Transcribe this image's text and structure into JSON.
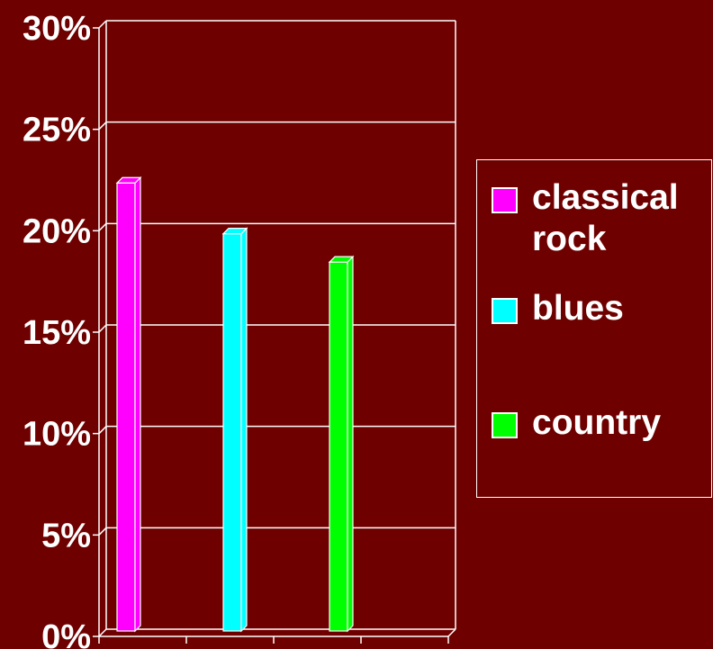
{
  "chart_data": {
    "type": "bar",
    "categories": [
      "classical rock",
      "blues",
      "country"
    ],
    "series": [
      {
        "values": [
          22,
          19.5,
          18.1
        ]
      }
    ],
    "colors": [
      "#ff00ff",
      "#00ffff",
      "#00ff00"
    ],
    "ylim": [
      0,
      30
    ],
    "yticks": [
      "0%",
      "5%",
      "10%",
      "15%",
      "20%",
      "25%",
      "30%"
    ],
    "grid": true,
    "legend": {
      "placement": "right",
      "entries": [
        {
          "label": "classical\nrock",
          "color": "#ff00ff"
        },
        {
          "label": "blues",
          "color": "#00ffff"
        },
        {
          "label": "country",
          "color": "#00ff00"
        }
      ]
    }
  },
  "theme": {
    "background": "#6e0000",
    "lines": "#ffffff"
  }
}
